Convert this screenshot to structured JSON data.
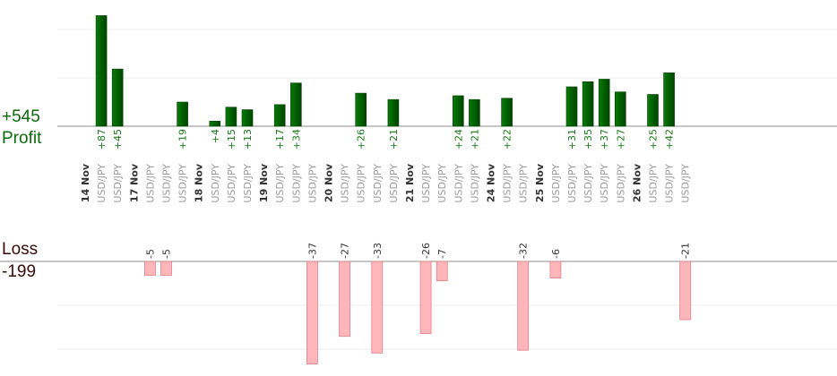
{
  "summary": {
    "profit_value": "+545",
    "profit_label": "Profit",
    "loss_label": "Loss",
    "loss_value": "-199"
  },
  "chart_data": {
    "type": "bar",
    "pair": "USD/JPY",
    "columns": [
      {
        "day": "14 Nov",
        "trades": [
          87,
          45
        ]
      },
      {
        "day": "17 Nov",
        "trades": [
          -5,
          -5,
          19
        ]
      },
      {
        "day": "18 Nov",
        "trades": [
          4,
          15,
          13
        ]
      },
      {
        "day": "19 Nov",
        "trades": [
          17,
          34,
          -37
        ]
      },
      {
        "day": "20 Nov",
        "trades": [
          -27,
          26,
          -33,
          21
        ]
      },
      {
        "day": "21 Nov",
        "trades": [
          -26,
          -7,
          24,
          21
        ]
      },
      {
        "day": "24 Nov",
        "trades": [
          22,
          -32
        ]
      },
      {
        "day": "25 Nov",
        "trades": [
          -6,
          31,
          35,
          37,
          27
        ]
      },
      {
        "day": "26 Nov",
        "trades": [
          25,
          42,
          -21
        ]
      }
    ]
  }
}
